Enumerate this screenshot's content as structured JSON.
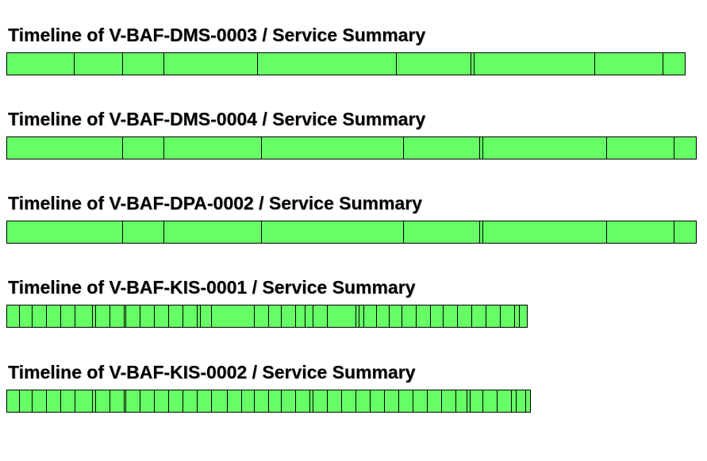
{
  "colors": {
    "ok": "#66ff66",
    "border": "#000000",
    "title": "#000000"
  },
  "chart_data": [
    {
      "type": "timeline",
      "title": "Timeline of V-BAF-DMS-0003 / Service Summary",
      "state": "OK",
      "segments": [
        [
          0,
          85
        ],
        [
          85,
          146
        ],
        [
          146,
          198
        ],
        [
          198,
          316
        ],
        [
          316,
          491
        ],
        [
          491,
          585
        ],
        [
          585,
          589
        ],
        [
          589,
          741
        ],
        [
          741,
          827
        ],
        [
          827,
          855
        ]
      ]
    },
    {
      "type": "timeline",
      "title": "Timeline of V-BAF-DMS-0004 / Service Summary",
      "state": "OK",
      "segments": [
        [
          0,
          146
        ],
        [
          146,
          198
        ],
        [
          198,
          321
        ],
        [
          321,
          500
        ],
        [
          500,
          596
        ],
        [
          596,
          600
        ],
        [
          600,
          756
        ],
        [
          756,
          841
        ],
        [
          841,
          869
        ]
      ]
    },
    {
      "type": "timeline",
      "title": "Timeline of V-BAF-DPA-0002 / Service Summary",
      "state": "OK",
      "segments": [
        [
          0,
          146
        ],
        [
          146,
          198
        ],
        [
          198,
          321
        ],
        [
          321,
          500
        ],
        [
          500,
          596
        ],
        [
          596,
          600
        ],
        [
          600,
          756
        ],
        [
          756,
          841
        ],
        [
          841,
          869
        ]
      ]
    },
    {
      "type": "timeline",
      "title": "Timeline of V-BAF-KIS-0001 / Service Summary",
      "state": "OK",
      "segments": [
        [
          0,
          16
        ],
        [
          16,
          32
        ],
        [
          32,
          50
        ],
        [
          50,
          68
        ],
        [
          68,
          86
        ],
        [
          86,
          108
        ],
        [
          108,
          112
        ],
        [
          112,
          130
        ],
        [
          130,
          148
        ],
        [
          148,
          150
        ],
        [
          150,
          168
        ],
        [
          168,
          186
        ],
        [
          186,
          204
        ],
        [
          204,
          222
        ],
        [
          222,
          240
        ],
        [
          240,
          244
        ],
        [
          244,
          258
        ],
        [
          258,
          312
        ],
        [
          312,
          330
        ],
        [
          330,
          346
        ],
        [
          346,
          364
        ],
        [
          364,
          376
        ],
        [
          376,
          386
        ],
        [
          386,
          404
        ],
        [
          404,
          440
        ],
        [
          440,
          444
        ],
        [
          444,
          450
        ],
        [
          450,
          466
        ],
        [
          466,
          482
        ],
        [
          482,
          498
        ],
        [
          498,
          516
        ],
        [
          516,
          534
        ],
        [
          534,
          550
        ],
        [
          550,
          568
        ],
        [
          568,
          586
        ],
        [
          586,
          604
        ],
        [
          604,
          622
        ],
        [
          622,
          640
        ],
        [
          640,
          646
        ],
        [
          646,
          656
        ]
      ]
    },
    {
      "type": "timeline",
      "title": "Timeline of V-BAF-KIS-0002 / Service Summary",
      "state": "OK",
      "segments": [
        [
          0,
          16
        ],
        [
          16,
          32
        ],
        [
          32,
          50
        ],
        [
          50,
          68
        ],
        [
          68,
          86
        ],
        [
          86,
          108
        ],
        [
          108,
          112
        ],
        [
          112,
          130
        ],
        [
          130,
          148
        ],
        [
          148,
          150
        ],
        [
          150,
          168
        ],
        [
          168,
          186
        ],
        [
          186,
          204
        ],
        [
          204,
          222
        ],
        [
          222,
          240
        ],
        [
          240,
          258
        ],
        [
          258,
          278
        ],
        [
          278,
          296
        ],
        [
          296,
          312
        ],
        [
          312,
          330
        ],
        [
          330,
          346
        ],
        [
          346,
          364
        ],
        [
          364,
          382
        ],
        [
          382,
          386
        ],
        [
          386,
          404
        ],
        [
          404,
          422
        ],
        [
          422,
          440
        ],
        [
          440,
          458
        ],
        [
          458,
          476
        ],
        [
          476,
          494
        ],
        [
          494,
          512
        ],
        [
          512,
          530
        ],
        [
          530,
          548
        ],
        [
          548,
          566
        ],
        [
          566,
          580
        ],
        [
          580,
          584
        ],
        [
          584,
          600
        ],
        [
          600,
          618
        ],
        [
          618,
          636
        ],
        [
          636,
          642
        ],
        [
          642,
          654
        ],
        [
          654,
          660
        ]
      ]
    }
  ]
}
